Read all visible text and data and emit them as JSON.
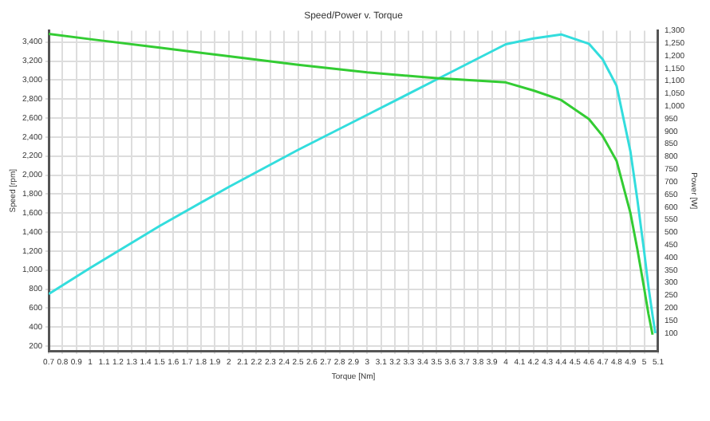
{
  "chart_data": {
    "type": "line",
    "title": "Speed/Power v. Torque",
    "xlabel": "Torque [Nm]",
    "ylabel": "Speed [rpm]",
    "y2label": "Power [W]",
    "grid": true,
    "legend": false,
    "marker": "none",
    "line_style": "solid",
    "xlim": [
      0.7,
      5.1
    ],
    "xticks": [
      0.7,
      0.8,
      0.9,
      1,
      1.1,
      1.2,
      1.3,
      1.4,
      1.5,
      1.6,
      1.7,
      1.8,
      1.9,
      2,
      2.1,
      2.2,
      2.3,
      2.4,
      2.5,
      2.6,
      2.7,
      2.8,
      2.9,
      3,
      3.1,
      3.2,
      3.3,
      3.4,
      3.5,
      3.6,
      3.7,
      3.8,
      3.9,
      4,
      4.1,
      4.2,
      4.3,
      4.4,
      4.5,
      4.6,
      4.7,
      4.8,
      4.9,
      5,
      5.1
    ],
    "ylim": [
      150,
      3520
    ],
    "yticks": [
      200,
      400,
      600,
      800,
      {
        "value": 1000,
        "label": "1,000"
      },
      {
        "value": 1200,
        "label": "1,200"
      },
      {
        "value": 1400,
        "label": "1,400"
      },
      {
        "value": 1600,
        "label": "1,600"
      },
      {
        "value": 1800,
        "label": "1,800"
      },
      {
        "value": 2000,
        "label": "2,000"
      },
      {
        "value": 2200,
        "label": "2,200"
      },
      {
        "value": 2400,
        "label": "2,400"
      },
      {
        "value": 2600,
        "label": "2,600"
      },
      {
        "value": 2800,
        "label": "2,800"
      },
      {
        "value": 3000,
        "label": "3,000"
      },
      {
        "value": 3200,
        "label": "3,200"
      },
      {
        "value": 3400,
        "label": "3,400"
      }
    ],
    "y2lim": [
      30,
      1300
    ],
    "y2ticks": [
      100,
      150,
      200,
      250,
      300,
      350,
      400,
      450,
      500,
      550,
      600,
      650,
      700,
      750,
      800,
      850,
      900,
      950,
      {
        "value": 1000,
        "label": "1,000"
      },
      {
        "value": 1050,
        "label": "1,050"
      },
      {
        "value": 1100,
        "label": "1,100"
      },
      {
        "value": 1150,
        "label": "1,150"
      },
      {
        "value": 1200,
        "label": "1,200"
      },
      {
        "value": 1250,
        "label": "1,250"
      },
      {
        "value": 1300,
        "label": "1,300"
      }
    ],
    "series": [
      {
        "color": "#33cc33",
        "x": [
          0.7,
          1,
          1.5,
          2,
          2.5,
          3,
          3.5,
          4,
          4.2,
          4.4,
          4.6,
          4.7,
          4.8,
          4.9,
          4.95,
          5,
          5.03,
          5.06
        ],
        "values": [
          3485,
          3430,
          3340,
          3250,
          3160,
          3080,
          3020,
          2975,
          2890,
          2790,
          2590,
          2410,
          2150,
          1600,
          1220,
          800,
          540,
          320
        ]
      },
      {
        "color": "#33dddd",
        "axis": "y2",
        "x": [
          0.7,
          1,
          1.5,
          2,
          2.5,
          3,
          3.5,
          4,
          4.2,
          4.4,
          4.6,
          4.7,
          4.8,
          4.9,
          4.95,
          5,
          5.03,
          5.06,
          5.08
        ],
        "values": [
          255,
          359,
          525,
          680,
          827,
          966,
          1106,
          1246,
          1269,
          1285,
          1248,
          1186,
          1081,
          821,
          630,
          420,
          285,
          170,
          100
        ]
      }
    ]
  }
}
